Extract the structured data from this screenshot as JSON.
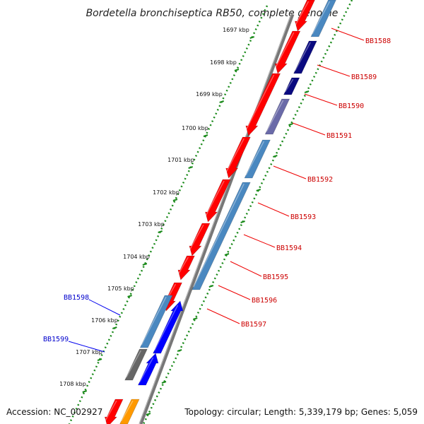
{
  "title": "Bordetella bronchiseptica RB50, complete genome",
  "accession": "Accession: NC_002927",
  "topology": "Topology: circular; Length: 5,339,179 bp; Genes: 5,059",
  "ticks": [
    "1697 kbp",
    "1698 kbp",
    "1699 kbp",
    "1700 kbp",
    "1701 kbp",
    "1702 kbp",
    "1703 kbp",
    "1704 kbp",
    "1705 kbp",
    "1706 kbp",
    "1707 kbp",
    "1708 kbp"
  ],
  "genes_right": [
    "BB1588",
    "BB1589",
    "BB1590",
    "BB1591",
    "BB1592",
    "BB1593",
    "BB1594",
    "BB1595",
    "BB1596",
    "BB1597"
  ],
  "genes_left": [
    "BB1598",
    "BB1599"
  ],
  "colors": {
    "forward_cds": "#ff0000",
    "reverse_cds": "#0000ff",
    "steelblue": "#4a88c0",
    "navy": "#0a0a80",
    "gray": "#666666",
    "orange": "#ff9900",
    "backbone": "#808080",
    "tick_dots": "#1a8a1a",
    "left_label": "#0000cc",
    "right_label": "#cc0000"
  }
}
